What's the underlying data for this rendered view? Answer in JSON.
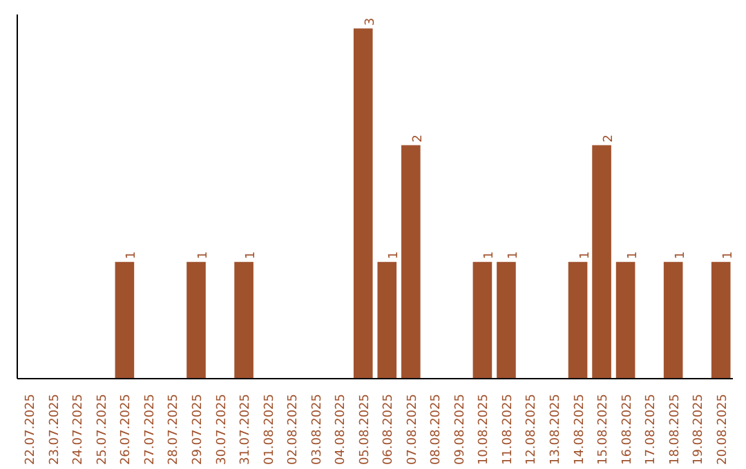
{
  "chart_data": {
    "type": "bar",
    "categories": [
      "22.07.2025",
      "23.07.2025",
      "24.07.2025",
      "25.07.2025",
      "26.07.2025",
      "27.07.2025",
      "28.07.2025",
      "29.07.2025",
      "30.07.2025",
      "31.07.2025",
      "01.08.2025",
      "02.08.2025",
      "03.08.2025",
      "04.08.2025",
      "05.08.2025",
      "06.08.2025",
      "07.08.2025",
      "08.08.2025",
      "09.08.2025",
      "10.08.2025",
      "11.08.2025",
      "12.08.2025",
      "13.08.2025",
      "14.08.2025",
      "15.08.2025",
      "16.08.2025",
      "17.08.2025",
      "18.08.2025",
      "19.08.2025",
      "20.08.2025"
    ],
    "values": [
      0,
      0,
      0,
      0,
      1,
      0,
      0,
      1,
      0,
      1,
      0,
      0,
      0,
      0,
      3,
      1,
      2,
      0,
      0,
      1,
      1,
      0,
      0,
      1,
      2,
      1,
      0,
      1,
      0,
      1
    ],
    "value_labels": [
      null,
      null,
      null,
      null,
      "1",
      null,
      null,
      "1",
      null,
      "1",
      null,
      null,
      null,
      null,
      "3",
      "1",
      "2",
      null,
      null,
      "1",
      "1",
      null,
      null,
      "1",
      "2",
      "1",
      null,
      "1",
      null,
      "1"
    ],
    "color": "#a0522d",
    "tick_labels": "x",
    "grid": false
  }
}
